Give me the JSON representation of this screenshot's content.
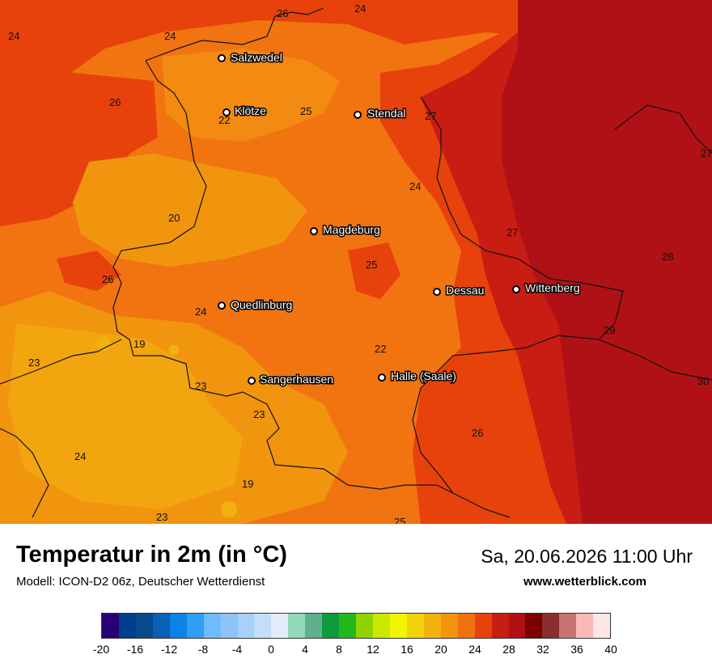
{
  "title": "Temperatur in 2m (in °C)",
  "subtitle": "Modell: ICON-D2 06z, Deutscher Wetterdienst",
  "datetime": "Sa, 20.06.2026 11:00 Uhr",
  "website": "www.wetterblick.com",
  "cities": [
    {
      "name": "Salzwedel"
    },
    {
      "name": "Klötze"
    },
    {
      "name": "Stendal"
    },
    {
      "name": "Magdeburg"
    },
    {
      "name": "Dessau"
    },
    {
      "name": "Wittenberg"
    },
    {
      "name": "Quedlinburg"
    },
    {
      "name": "Sangerhausen"
    },
    {
      "name": "Halle (Saale)"
    }
  ],
  "temperature_labels": [
    "26",
    "24",
    "24",
    "24",
    "26",
    "22",
    "25",
    "27",
    "27",
    "24",
    "20",
    "27",
    "28",
    "25",
    "26",
    "24",
    "29",
    "19",
    "22",
    "23",
    "23",
    "24",
    "30",
    "23",
    "26",
    "24",
    "19",
    "23",
    "25"
  ],
  "legend": {
    "colors": [
      "#2a0077",
      "#003f8f",
      "#064a8b",
      "#0960b4",
      "#0b82e6",
      "#2f9ff5",
      "#6fbbff",
      "#8dc5fb",
      "#a7d0fd",
      "#c4def8",
      "#e3ecf8",
      "#92d8b8",
      "#5fb08c",
      "#109b3a",
      "#22b81c",
      "#8fd400",
      "#cbe800",
      "#f3f500",
      "#f1d30b",
      "#f2b20e",
      "#f2950e",
      "#f0720e",
      "#e8420c",
      "#c71d12",
      "#b01116",
      "#7c0000",
      "#8b2e2e",
      "#c67470",
      "#fdb9b6",
      "#fde6e6"
    ],
    "ticks": [
      "-20",
      "-16",
      "-12",
      "-8",
      "-4",
      "0",
      "4",
      "8",
      "12",
      "16",
      "20",
      "24",
      "28",
      "32",
      "36",
      "40"
    ]
  }
}
